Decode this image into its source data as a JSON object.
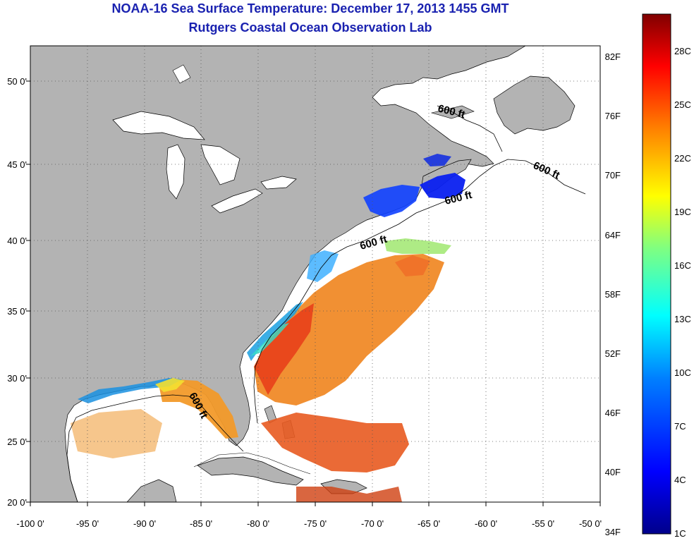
{
  "title": "NOAA-16 Sea Surface Temperature:  December 17, 2013 1455 GMT",
  "subtitle": "Rutgers Coastal Ocean Observation Lab",
  "lat_ticks": [
    "50 0'",
    "45 0'",
    "40 0'",
    "35 0'",
    "30 0'",
    "25 0'",
    "20 0'"
  ],
  "lon_ticks": [
    "-100 0'",
    "-95 0'",
    "-90 0'",
    "-85 0'",
    "-80 0'",
    "-75 0'",
    "-70 0'",
    "-65 0'",
    "-60 0'",
    "-55 0'",
    "-50 0'"
  ],
  "contour_labels": [
    "600 ft",
    "600 ft",
    "600 ft",
    "600 ft",
    "600 ft"
  ],
  "colorbar": {
    "fahrenheit": [
      "82F",
      "76F",
      "70F",
      "64F",
      "58F",
      "52F",
      "46F",
      "40F",
      "34F"
    ],
    "celsius": [
      "28C",
      "25C",
      "22C",
      "19C",
      "16C",
      "13C",
      "10C",
      "7C",
      "4C",
      "1C"
    ],
    "colors": [
      "#00008b",
      "#0000ff",
      "#0080ff",
      "#00ffff",
      "#80ff80",
      "#ffff00",
      "#ff8000",
      "#ff0000",
      "#800000"
    ]
  },
  "colors": {
    "land": "#b3b3b3",
    "ocean": "#ffffff",
    "title": "#1a22b0"
  }
}
